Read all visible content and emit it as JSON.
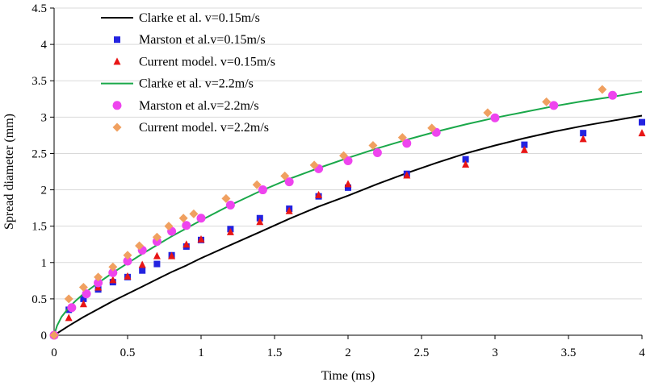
{
  "chart_data": {
    "type": "scatter",
    "title": "",
    "xlabel": "Time (ms)",
    "ylabel": "Spread diameter (mm)",
    "xlim": [
      0,
      4
    ],
    "ylim": [
      0,
      4.5
    ],
    "xticks": [
      "0",
      "0.5",
      "1",
      "1.5",
      "2",
      "2.5",
      "3",
      "3.5",
      "4"
    ],
    "yticks": [
      "0",
      "0.5",
      "1",
      "1.5",
      "2",
      "2.5",
      "3",
      "3.5",
      "4",
      "4.5"
    ],
    "legend_position": "top-left",
    "series": [
      {
        "name": "Clarke et al. v=0.15m/s",
        "kind": "line",
        "color": "#000000",
        "x": [
          0,
          0.1,
          0.2,
          0.3,
          0.4,
          0.5,
          0.6,
          0.7,
          0.8,
          0.9,
          1.0,
          1.2,
          1.4,
          1.6,
          1.8,
          2.0,
          2.2,
          2.4,
          2.6,
          2.8,
          3.0,
          3.2,
          3.4,
          3.6,
          3.8,
          4.0
        ],
        "y": [
          0,
          0.13,
          0.25,
          0.36,
          0.47,
          0.57,
          0.67,
          0.77,
          0.87,
          0.96,
          1.06,
          1.24,
          1.42,
          1.6,
          1.77,
          1.92,
          2.08,
          2.23,
          2.37,
          2.5,
          2.61,
          2.71,
          2.8,
          2.88,
          2.95,
          3.02
        ]
      },
      {
        "name": "Marston et al.v=0.15m/s",
        "kind": "marker",
        "marker": "square",
        "color": "#2323e0",
        "x": [
          0,
          0.1,
          0.2,
          0.3,
          0.4,
          0.5,
          0.6,
          0.7,
          0.8,
          0.9,
          1.0,
          1.2,
          1.4,
          1.6,
          1.8,
          2.0,
          2.4,
          2.8,
          3.2,
          3.6,
          4.0
        ],
        "y": [
          0,
          0.35,
          0.5,
          0.63,
          0.73,
          0.8,
          0.89,
          0.98,
          1.1,
          1.22,
          1.31,
          1.46,
          1.61,
          1.74,
          1.91,
          2.03,
          2.22,
          2.42,
          2.62,
          2.78,
          2.93
        ]
      },
      {
        "name": "Current model. v=0.15m/s",
        "kind": "marker",
        "marker": "triangle",
        "color": "#e81515",
        "x": [
          0,
          0.1,
          0.2,
          0.3,
          0.4,
          0.5,
          0.6,
          0.7,
          0.8,
          0.9,
          1.0,
          1.2,
          1.4,
          1.6,
          1.8,
          2.0,
          2.4,
          2.8,
          3.2,
          3.6,
          4.0
        ],
        "y": [
          0,
          0.24,
          0.43,
          0.66,
          0.76,
          0.81,
          0.97,
          1.09,
          1.09,
          1.25,
          1.32,
          1.42,
          1.56,
          1.71,
          1.93,
          2.08,
          2.2,
          2.35,
          2.55,
          2.7,
          2.78
        ]
      },
      {
        "name": "Clarke et al. v=2.2m/s",
        "kind": "line",
        "color": "#1aa84a",
        "x": [
          0,
          0.02,
          0.05,
          0.1,
          0.15,
          0.2,
          0.3,
          0.4,
          0.5,
          0.6,
          0.7,
          0.8,
          0.9,
          1.0,
          1.2,
          1.4,
          1.6,
          1.8,
          2.0,
          2.2,
          2.4,
          2.6,
          2.8,
          3.0,
          3.2,
          3.4,
          3.6,
          3.8,
          4.0
        ],
        "y": [
          0,
          0.13,
          0.25,
          0.38,
          0.48,
          0.57,
          0.72,
          0.86,
          0.99,
          1.12,
          1.24,
          1.36,
          1.47,
          1.58,
          1.79,
          1.98,
          2.15,
          2.3,
          2.44,
          2.57,
          2.69,
          2.8,
          2.9,
          2.99,
          3.07,
          3.15,
          3.22,
          3.28,
          3.35
        ]
      },
      {
        "name": "Marston et al.v=2.2m/s",
        "kind": "marker",
        "marker": "circle",
        "color": "#ee44ee",
        "x": [
          0,
          0.12,
          0.22,
          0.3,
          0.4,
          0.5,
          0.6,
          0.7,
          0.8,
          0.9,
          1.0,
          1.2,
          1.42,
          1.6,
          1.8,
          2.0,
          2.2,
          2.4,
          2.6,
          3.0,
          3.4,
          3.8
        ],
        "y": [
          0,
          0.38,
          0.57,
          0.72,
          0.86,
          1.02,
          1.17,
          1.29,
          1.43,
          1.51,
          1.61,
          1.79,
          2.0,
          2.11,
          2.29,
          2.4,
          2.51,
          2.64,
          2.79,
          2.99,
          3.16,
          3.3
        ]
      },
      {
        "name": "Current model. v=2.2m/s",
        "kind": "marker",
        "marker": "diamond",
        "color": "#f0a060",
        "x": [
          0,
          0.1,
          0.2,
          0.3,
          0.4,
          0.5,
          0.58,
          0.7,
          0.78,
          0.88,
          0.95,
          1.17,
          1.38,
          1.57,
          1.77,
          1.97,
          2.17,
          2.37,
          2.57,
          2.95,
          3.35,
          3.73
        ],
        "y": [
          0,
          0.5,
          0.66,
          0.8,
          0.94,
          1.1,
          1.23,
          1.35,
          1.5,
          1.61,
          1.67,
          1.88,
          2.07,
          2.19,
          2.34,
          2.47,
          2.61,
          2.72,
          2.85,
          3.06,
          3.21,
          3.38
        ]
      }
    ]
  }
}
